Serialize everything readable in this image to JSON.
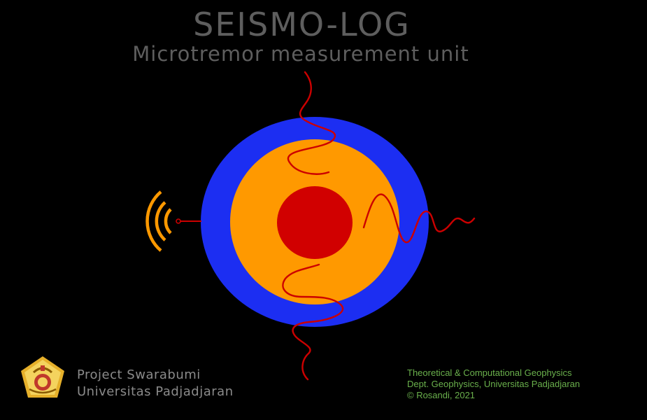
{
  "header": {
    "title": "SEISMO-LOG",
    "subtitle": "Microtremor measurement unit"
  },
  "colors": {
    "background": "#000000",
    "heading_text": "#5e5e5e",
    "outer_ring": "#1c2ef2",
    "middle_disc": "#ff9900",
    "core": "#d10000",
    "wave": "#cc0000",
    "signal_arcs": "#ff9900",
    "antenna": "#cc0000",
    "credits_text": "#6ab04c",
    "project_text": "#8a8a8a"
  },
  "icons": {
    "signal": "wireless-signal-icon",
    "logo": "universitas-padjadjaran-emblem"
  },
  "footer": {
    "project_lines": [
      "Project Swarabumi",
      "Universitas Padjadjaran"
    ],
    "credit_lines": [
      "Theoretical & Computational Geophysics",
      "Dept. Geophysics, Universitas Padjadjaran",
      "© Rosandi, 2021"
    ]
  }
}
